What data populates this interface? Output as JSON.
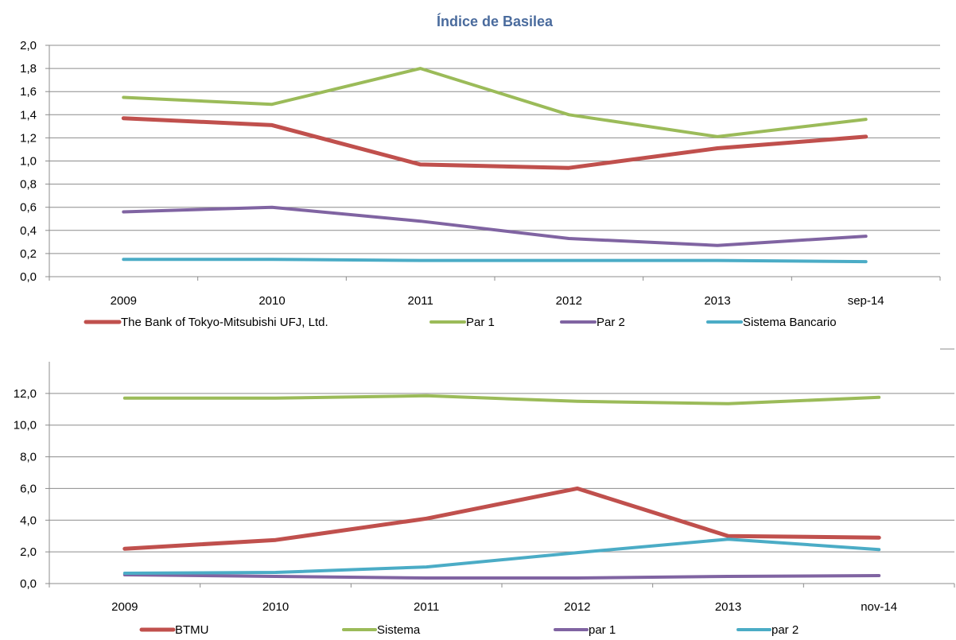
{
  "chart_data": [
    {
      "type": "line",
      "title": "Índice de Basilea",
      "xlabel": "",
      "ylabel": "",
      "categories": [
        "2009",
        "2010",
        "2011",
        "2012",
        "2013",
        "sep-14"
      ],
      "ylim": [
        0,
        2
      ],
      "yticks": [
        "0,0",
        "0,2",
        "0,4",
        "0,6",
        "0,8",
        "1,0",
        "1,2",
        "1,4",
        "1,6",
        "1,8",
        "2,0"
      ],
      "grid": true,
      "legend": "bottom",
      "series": [
        {
          "name": "The Bank of Tokyo-Mitsubishi UFJ, Ltd.",
          "color": "#c0504d",
          "values": [
            1.37,
            1.31,
            0.97,
            0.94,
            1.11,
            1.21
          ]
        },
        {
          "name": "Par 1",
          "color": "#9bbb59",
          "values": [
            1.55,
            1.49,
            1.8,
            1.4,
            1.21,
            1.36
          ]
        },
        {
          "name": "Par 2",
          "color": "#8064a2",
          "values": [
            0.56,
            0.6,
            0.48,
            0.33,
            0.27,
            0.35
          ]
        },
        {
          "name": "Sistema Bancario",
          "color": "#4bacc6",
          "values": [
            0.15,
            0.15,
            0.14,
            0.14,
            0.14,
            0.13
          ]
        }
      ]
    },
    {
      "type": "line",
      "title": "",
      "xlabel": "",
      "ylabel": "",
      "categories": [
        "2009",
        "2010",
        "2011",
        "2012",
        "2013",
        "nov-14"
      ],
      "ylim": [
        0,
        14
      ],
      "yticks": [
        "0,0",
        "2,0",
        "4,0",
        "6,0",
        "8,0",
        "10,0",
        "12,0"
      ],
      "grid": true,
      "legend": "bottom",
      "series": [
        {
          "name": "BTMU",
          "color": "#c0504d",
          "values": [
            2.2,
            2.75,
            4.1,
            6.0,
            3.0,
            2.9
          ]
        },
        {
          "name": "Sistema",
          "color": "#9bbb59",
          "values": [
            11.7,
            11.7,
            11.85,
            11.5,
            11.35,
            11.75
          ]
        },
        {
          "name": "par 1",
          "color": "#8064a2",
          "values": [
            0.55,
            0.45,
            0.35,
            0.35,
            0.45,
            0.5
          ]
        },
        {
          "name": "par 2",
          "color": "#4bacc6",
          "values": [
            0.65,
            0.7,
            1.05,
            1.95,
            2.8,
            2.15
          ]
        }
      ]
    }
  ]
}
